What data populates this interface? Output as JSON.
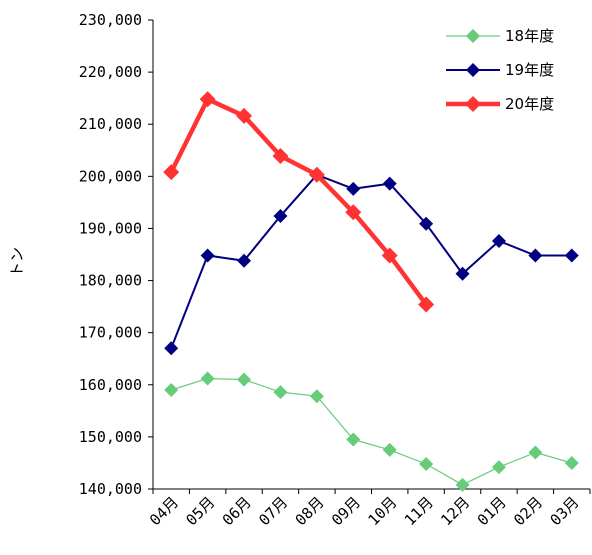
{
  "chart_data": {
    "type": "line",
    "ylabel": "トン",
    "ylim": [
      140000,
      230000
    ],
    "ytick_step": 10000,
    "ytick_labels": [
      "140,000",
      "150,000",
      "160,000",
      "170,000",
      "180,000",
      "190,000",
      "200,000",
      "210,000",
      "220,000",
      "230,000"
    ],
    "categories": [
      "04月",
      "05月",
      "06月",
      "07月",
      "08月",
      "09月",
      "10月",
      "11月",
      "12月",
      "01月",
      "02月",
      "03月"
    ],
    "legend_position": "top-right",
    "grid": false,
    "series": [
      {
        "name": "18年度",
        "color": "#66cc7a",
        "marker": "diamond",
        "values": [
          159000,
          161200,
          161000,
          158600,
          157800,
          149500,
          147500,
          144800,
          140800,
          144200,
          147000,
          145000
        ]
      },
      {
        "name": "19年度",
        "color": "#000080",
        "marker": "diamond",
        "values": [
          167000,
          184800,
          183800,
          192400,
          200300,
          197600,
          198600,
          190900,
          181300,
          187600,
          184800,
          184800
        ]
      },
      {
        "name": "20年度",
        "color": "#ff3333",
        "marker": "diamond",
        "values": [
          200800,
          214800,
          211600,
          203900,
          200300,
          193100,
          184800,
          175400,
          null,
          null,
          null,
          null
        ]
      }
    ]
  }
}
